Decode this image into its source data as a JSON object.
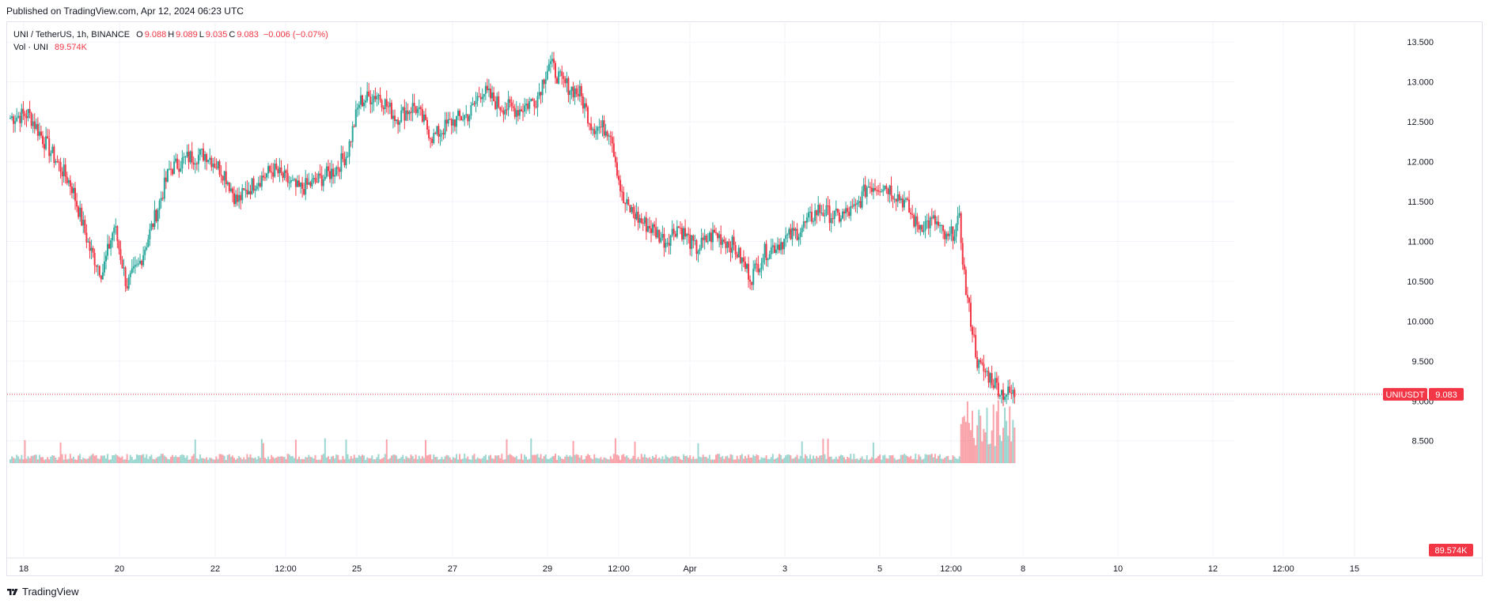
{
  "header": {
    "published": "Published on TradingView.com, Apr 12, 2024 06:23 UTC"
  },
  "legend": {
    "symbol": "UNI / TetherUS, 1h, BINANCE",
    "open_label": "O",
    "open": "9.088",
    "high_label": "H",
    "high": "9.089",
    "low_label": "L",
    "low": "9.035",
    "close_label": "C",
    "close": "9.083",
    "change": "−0.006 (−0.07%)",
    "vol_label": "Vol · UNI",
    "vol_value": "89.574K"
  },
  "footer": {
    "brand": "TradingView",
    "logo_icon": "tradingview-logo-icon"
  },
  "colors": {
    "up": "#26a69a",
    "down": "#f23645",
    "grid": "#f0f3fa",
    "axis_text": "#131722",
    "border": "#e0e3eb"
  },
  "chart_data": {
    "type": "candlestick",
    "symbol": "UNI / TetherUS",
    "interval": "1h",
    "exchange": "BINANCE",
    "y_ticks": [
      "13.500",
      "13.000",
      "12.500",
      "12.000",
      "11.500",
      "11.000",
      "10.500",
      "10.000",
      "9.500",
      "9.000",
      "8.500"
    ],
    "ylim": [
      8.2,
      13.75
    ],
    "x_ticks": [
      "18",
      "20",
      "22",
      "12:00",
      "25",
      "27",
      "29",
      "12:00",
      "Apr",
      "3",
      "5",
      "12:00",
      "8",
      "10",
      "12",
      "12:00",
      "15"
    ],
    "last_price_label": {
      "symbol": "UNIUSDT",
      "price": "9.083"
    },
    "volume_label": "89.574K",
    "price_path_anchors": [
      [
        0,
        12.55
      ],
      [
        0.015,
        12.6
      ],
      [
        0.03,
        12.2
      ],
      [
        0.05,
        11.7
      ],
      [
        0.065,
        10.9
      ],
      [
        0.075,
        10.6
      ],
      [
        0.085,
        11.2
      ],
      [
        0.095,
        10.45
      ],
      [
        0.105,
        10.7
      ],
      [
        0.118,
        11.3
      ],
      [
        0.13,
        11.9
      ],
      [
        0.145,
        12.05
      ],
      [
        0.16,
        12.1
      ],
      [
        0.175,
        11.85
      ],
      [
        0.185,
        11.5
      ],
      [
        0.2,
        11.75
      ],
      [
        0.215,
        11.9
      ],
      [
        0.235,
        11.65
      ],
      [
        0.25,
        11.75
      ],
      [
        0.265,
        11.9
      ],
      [
        0.275,
        12.1
      ],
      [
        0.285,
        12.75
      ],
      [
        0.3,
        12.85
      ],
      [
        0.315,
        12.55
      ],
      [
        0.33,
        12.7
      ],
      [
        0.345,
        12.3
      ],
      [
        0.36,
        12.5
      ],
      [
        0.375,
        12.6
      ],
      [
        0.385,
        12.9
      ],
      [
        0.4,
        12.7
      ],
      [
        0.415,
        12.65
      ],
      [
        0.43,
        12.8
      ],
      [
        0.44,
        13.25
      ],
      [
        0.45,
        13.0
      ],
      [
        0.465,
        12.85
      ],
      [
        0.475,
        12.45
      ],
      [
        0.49,
        12.4
      ],
      [
        0.5,
        11.5
      ],
      [
        0.515,
        11.25
      ],
      [
        0.525,
        11.15
      ],
      [
        0.535,
        11.0
      ],
      [
        0.545,
        11.2
      ],
      [
        0.56,
        10.9
      ],
      [
        0.575,
        11.1
      ],
      [
        0.59,
        10.95
      ],
      [
        0.605,
        10.55
      ],
      [
        0.615,
        10.85
      ],
      [
        0.63,
        11.0
      ],
      [
        0.645,
        11.15
      ],
      [
        0.66,
        11.4
      ],
      [
        0.675,
        11.3
      ],
      [
        0.69,
        11.4
      ],
      [
        0.7,
        11.7
      ],
      [
        0.715,
        11.7
      ],
      [
        0.73,
        11.5
      ],
      [
        0.74,
        11.2
      ],
      [
        0.755,
        11.25
      ],
      [
        0.765,
        11.0
      ],
      [
        0.775,
        11.25
      ],
      [
        0.78,
        10.4
      ],
      [
        0.785,
        9.95
      ],
      [
        0.79,
        9.45
      ],
      [
        0.8,
        9.3
      ],
      [
        0.81,
        9.1
      ],
      [
        0.82,
        9.08
      ]
    ]
  }
}
